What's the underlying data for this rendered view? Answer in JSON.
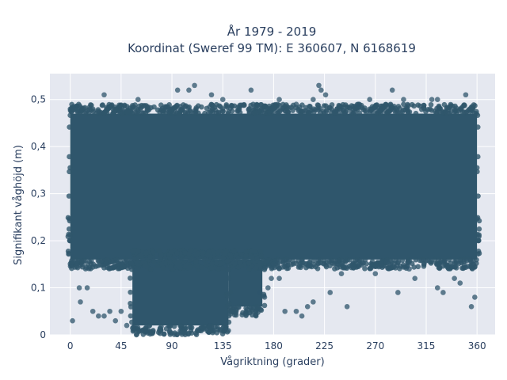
{
  "chart_data": {
    "type": "scatter",
    "title_line1": "År 1979 - 2019",
    "title_line2": "Koordinat (Sweref 99 TM): E 360607, N 6168619",
    "xlabel": "Vågriktning (grader)",
    "ylabel": "Signifikant våghöjd (m)",
    "xlim": [
      -18,
      376
    ],
    "ylim": [
      0,
      0.555
    ],
    "x_ticks": [
      0,
      45,
      90,
      135,
      180,
      225,
      270,
      315,
      360
    ],
    "x_tick_labels": [
      "0",
      "45",
      "90",
      "135",
      "180",
      "225",
      "270",
      "315",
      "360"
    ],
    "y_ticks": [
      0,
      0.1,
      0.2,
      0.3,
      0.4,
      0.5
    ],
    "y_tick_labels": [
      "0",
      "0,1",
      "0,2",
      "0,3",
      "0,4",
      "0,5"
    ],
    "grid": true,
    "colors": {
      "plot_bg": "#e5e8f0",
      "grid": "#ffffff",
      "marker": "#2f566c",
      "text": "#2a3f5f"
    },
    "dense_regions": [
      {
        "x": [
          0,
          360
        ],
        "y": [
          0.16,
          0.47
        ]
      },
      {
        "x": [
          55,
          140
        ],
        "y": [
          0.02,
          0.16
        ]
      },
      {
        "x": [
          140,
          170
        ],
        "y": [
          0.06,
          0.16
        ]
      }
    ],
    "outliers": [
      [
        2,
        0.03
      ],
      [
        8,
        0.1
      ],
      [
        9,
        0.07
      ],
      [
        15,
        0.1
      ],
      [
        20,
        0.05
      ],
      [
        25,
        0.04
      ],
      [
        30,
        0.04
      ],
      [
        35,
        0.05
      ],
      [
        40,
        0.03
      ],
      [
        45,
        0.05
      ],
      [
        50,
        0.02
      ],
      [
        30,
        0.51
      ],
      [
        60,
        0.5
      ],
      [
        95,
        0.52
      ],
      [
        105,
        0.52
      ],
      [
        110,
        0.53
      ],
      [
        125,
        0.51
      ],
      [
        135,
        0.5
      ],
      [
        160,
        0.52
      ],
      [
        185,
        0.5
      ],
      [
        200,
        0.49
      ],
      [
        215,
        0.5
      ],
      [
        220,
        0.53
      ],
      [
        222,
        0.52
      ],
      [
        226,
        0.51
      ],
      [
        255,
        0.49
      ],
      [
        265,
        0.5
      ],
      [
        285,
        0.52
      ],
      [
        295,
        0.5
      ],
      [
        320,
        0.5
      ],
      [
        325,
        0.5
      ],
      [
        350,
        0.51
      ],
      [
        185,
        0.12
      ],
      [
        190,
        0.05
      ],
      [
        200,
        0.05
      ],
      [
        205,
        0.04
      ],
      [
        210,
        0.06
      ],
      [
        215,
        0.07
      ],
      [
        230,
        0.09
      ],
      [
        245,
        0.06
      ],
      [
        270,
        0.13
      ],
      [
        290,
        0.09
      ],
      [
        305,
        0.12
      ],
      [
        325,
        0.1
      ],
      [
        330,
        0.09
      ],
      [
        345,
        0.11
      ],
      [
        355,
        0.06
      ],
      [
        358,
        0.08
      ],
      [
        175,
        0.1
      ],
      [
        172,
        0.08
      ],
      [
        178,
        0.12
      ],
      [
        168,
        0.09
      ],
      [
        340,
        0.12
      ],
      [
        300,
        0.14
      ],
      [
        240,
        0.13
      ]
    ]
  }
}
